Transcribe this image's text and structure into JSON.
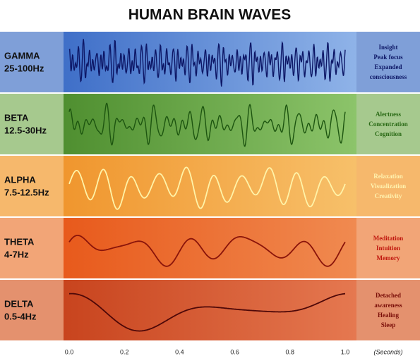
{
  "title": "HUMAN BRAIN WAVES",
  "bands": [
    {
      "name": "GAMMA",
      "range": "25-100Hz",
      "effects": [
        "Insight",
        "Peak focus",
        "Expanded",
        "consciousness"
      ]
    },
    {
      "name": "BETA",
      "range": "12.5-30Hz",
      "effects": [
        "Alertness",
        "Concentration",
        "Cognition"
      ]
    },
    {
      "name": "ALPHA",
      "range": "7.5-12.5Hz",
      "effects": [
        "Relaxation",
        "Visualization",
        "Creativity"
      ]
    },
    {
      "name": "THETA",
      "range": "4-7Hz",
      "effects": [
        "Meditation",
        "Intuition",
        "Memory"
      ]
    },
    {
      "name": "DELTA",
      "range": "0.5-4Hz",
      "effects": [
        "Detached",
        "awareness",
        "Healing",
        "Sleep"
      ]
    }
  ],
  "axis": {
    "ticks": [
      "0.0",
      "0.2",
      "0.4",
      "0.6",
      "0.8",
      "1.0"
    ],
    "unit": "(Seconds)"
  }
}
